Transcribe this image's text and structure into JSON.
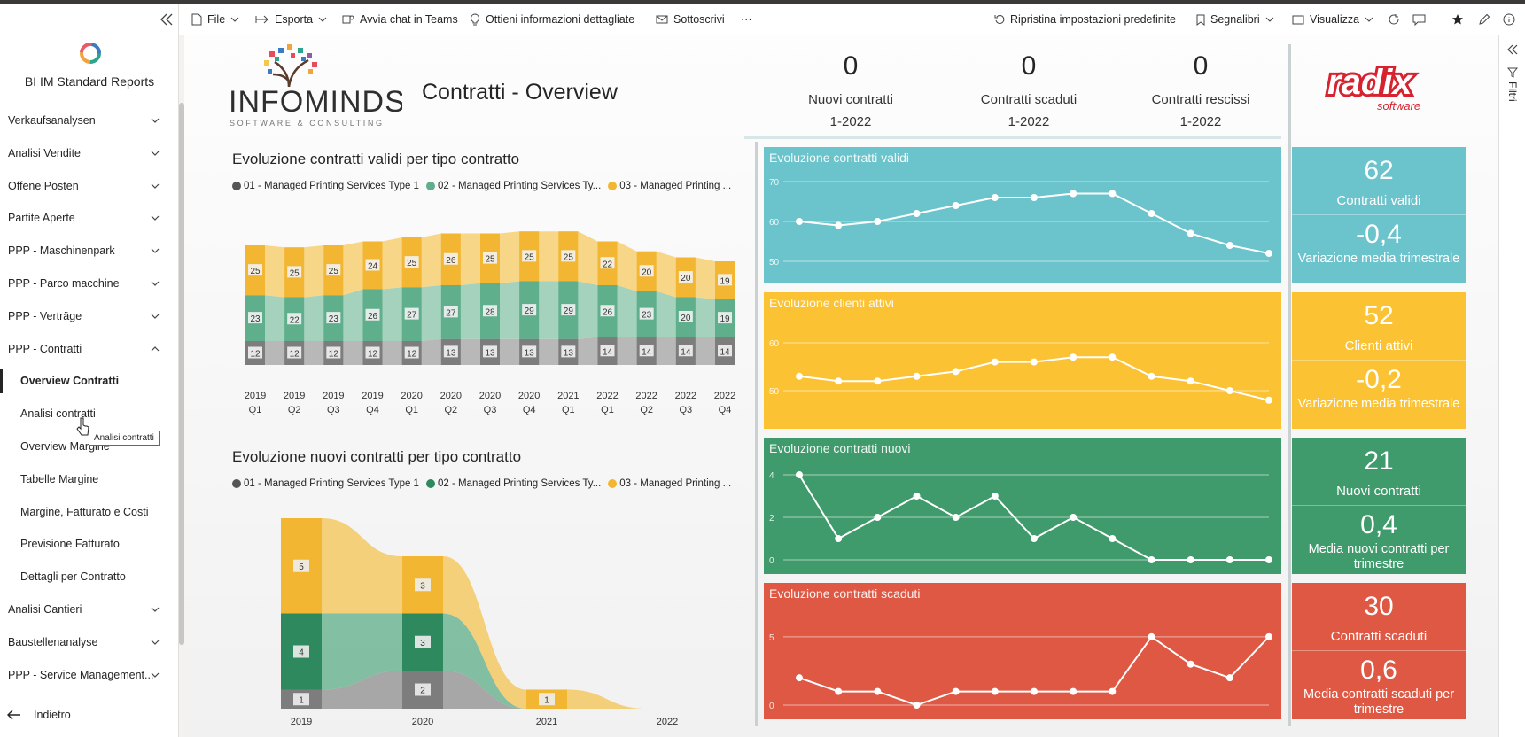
{
  "app": {
    "title": "BI IM Standard Reports"
  },
  "sidebar": {
    "items": [
      {
        "label": "Verkaufsanalysen"
      },
      {
        "label": "Analisi Vendite"
      },
      {
        "label": "Offene Posten"
      },
      {
        "label": "Partite Aperte"
      },
      {
        "label": "PPP - Maschinenpark"
      },
      {
        "label": "PPP - Parco macchine"
      },
      {
        "label": "PPP - Verträge"
      },
      {
        "label": "PPP - Contratti"
      }
    ],
    "subitems": [
      {
        "label": "Overview Contratti"
      },
      {
        "label": "Analisi contratti"
      },
      {
        "label": "Overview Margine"
      },
      {
        "label": "Tabelle Margine"
      },
      {
        "label": "Margine, Fatturato e Costi"
      },
      {
        "label": "Previsione Fatturato"
      },
      {
        "label": "Dettagli per Contratto"
      }
    ],
    "items_after": [
      {
        "label": "Analisi Cantieri"
      },
      {
        "label": "Baustellenanalyse"
      },
      {
        "label": "PPP - Service Management..."
      }
    ],
    "back": "Indietro",
    "tooltip": "Analisi contratti"
  },
  "toolbar": {
    "file": "File",
    "export": "Esporta",
    "teams": "Avvia chat in Teams",
    "insights": "Ottieni informazioni dettagliate",
    "subscribe": "Sottoscrivi",
    "more": "···",
    "reset": "Ripristina impostazioni predefinite",
    "bookmarks": "Segnalibri",
    "view": "Visualizza"
  },
  "filters_label": "Filtri",
  "report": {
    "title": "Contratti - Overview",
    "logo_name": "INFOMINDS",
    "logo_tagline": "SOFTWARE & CONSULTING",
    "partner_logo": "radix",
    "partner_tagline": "software",
    "kpis": [
      {
        "value": "0",
        "label": "Nuovi contratti",
        "period": "1-2022"
      },
      {
        "value": "0",
        "label": "Contratti scaduti",
        "period": "1-2022"
      },
      {
        "value": "0",
        "label": "Contratti rescissi",
        "period": "1-2022"
      }
    ]
  },
  "colors": {
    "series1": "#7a7a7a",
    "series2": "#5fae8c",
    "series3": "#f2b632",
    "teal": "#6bc3cb",
    "yellow": "#fbc234",
    "green": "#3f9a6c",
    "red": "#de5843"
  },
  "chart_data": [
    {
      "type": "bar",
      "stacked": true,
      "title": "Evoluzione contratti validi per tipo contratto",
      "legend": [
        "01 - Managed Printing Services Type 1",
        "02 - Managed Printing Services Ty...",
        "03 - Managed Printing ..."
      ],
      "categories": [
        "2019 Q1",
        "2019 Q2",
        "2019 Q3",
        "2019 Q4",
        "2020 Q1",
        "2020 Q2",
        "2020 Q3",
        "2020 Q4",
        "2021 Q1",
        "2022 Q1",
        "2022 Q2",
        "2022 Q3",
        "2022 Q4"
      ],
      "category_years": [
        "2019",
        "2019",
        "2019",
        "2019",
        "2020",
        "2020",
        "2020",
        "2020",
        "2021",
        "2022",
        "2022",
        "2022",
        "2022"
      ],
      "category_quarters": [
        "Q1",
        "Q2",
        "Q3",
        "Q4",
        "Q1",
        "Q2",
        "Q3",
        "Q4",
        "Q1",
        "Q1",
        "Q2",
        "Q3",
        "Q4"
      ],
      "series": [
        {
          "name": "01 - Managed Printing Services Type 1",
          "values": [
            12,
            12,
            12,
            12,
            12,
            13,
            13,
            13,
            13,
            14,
            14,
            14,
            14
          ]
        },
        {
          "name": "02 - Managed Printing Services Ty...",
          "values": [
            23,
            22,
            23,
            26,
            27,
            27,
            28,
            29,
            29,
            26,
            23,
            20,
            19
          ]
        },
        {
          "name": "03 - Managed Printing ...",
          "values": [
            25,
            25,
            25,
            24,
            25,
            26,
            25,
            25,
            25,
            22,
            20,
            20,
            19
          ]
        }
      ]
    },
    {
      "type": "bar",
      "stacked": true,
      "title": "Evoluzione nuovi contratti per tipo contratto",
      "legend": [
        "01 - Managed Printing Services Type 1",
        "02 - Managed Printing Services Ty...",
        "03 - Managed Printing ..."
      ],
      "categories": [
        "2019",
        "2020",
        "2021",
        "2022"
      ],
      "series": [
        {
          "name": "01 - Managed Printing Services Type 1",
          "values": [
            1,
            2,
            0,
            0
          ]
        },
        {
          "name": "02 - Managed Printing Services Ty...",
          "values": [
            4,
            3,
            0,
            0
          ]
        },
        {
          "name": "03 - Managed Printing ...",
          "values": [
            5,
            3,
            1,
            0
          ]
        }
      ]
    },
    {
      "type": "line",
      "title": "Evoluzione contratti validi",
      "y_ticks": [
        50,
        60,
        70
      ],
      "ylim": [
        48,
        72
      ],
      "values": [
        60,
        59,
        60,
        62,
        64,
        66,
        66,
        67,
        67,
        62,
        57,
        54,
        52
      ]
    },
    {
      "type": "line",
      "title": "Evoluzione clienti attivi",
      "y_ticks": [
        50,
        60
      ],
      "ylim": [
        45,
        65
      ],
      "values": [
        53,
        52,
        52,
        53,
        54,
        56,
        56,
        57,
        57,
        53,
        52,
        50,
        48
      ]
    },
    {
      "type": "line",
      "title": "Evoluzione contratti nuovi",
      "y_ticks": [
        0,
        2,
        4
      ],
      "ylim": [
        0,
        4.5
      ],
      "values": [
        4,
        1,
        2,
        3,
        2,
        3,
        1,
        2,
        1,
        0,
        0,
        0,
        0
      ]
    },
    {
      "type": "line",
      "title": "Evoluzione contratti scaduti",
      "y_ticks": [
        0,
        5
      ],
      "ylim": [
        0,
        7
      ],
      "values": [
        2,
        1,
        1,
        0,
        1,
        1,
        1,
        1,
        1,
        5,
        3,
        2,
        5
      ]
    }
  ],
  "cards": [
    {
      "value": "62",
      "label": "Contratti validi",
      "value2": "-0,4",
      "label2": "Variazione media trimestrale"
    },
    {
      "value": "52",
      "label": "Clienti attivi",
      "value2": "-0,2",
      "label2": "Variazione media trimestrale"
    },
    {
      "value": "21",
      "label": "Nuovi contratti",
      "value2": "0,4",
      "label2": "Media nuovi contratti per trimestre"
    },
    {
      "value": "30",
      "label": "Contratti scaduti",
      "value2": "0,6",
      "label2": "Media contratti scaduti per trimestre"
    }
  ]
}
